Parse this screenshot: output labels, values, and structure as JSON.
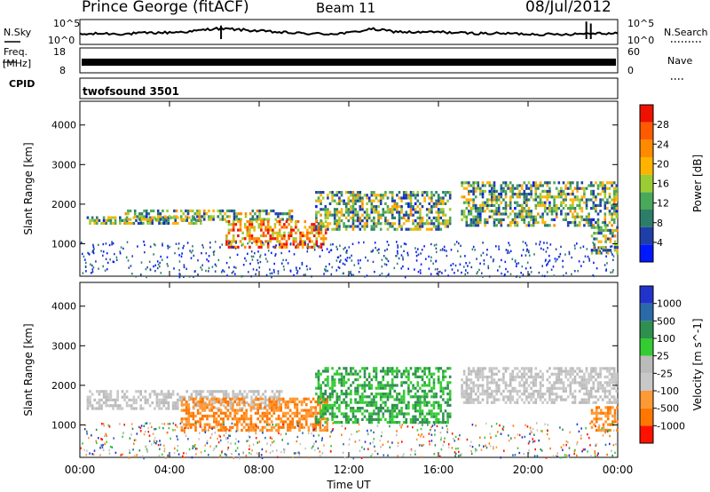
{
  "header": {
    "title": "Prince George (fitACF)",
    "beam": "Beam 11",
    "date": "08/Jul/2012"
  },
  "left_labels": {
    "nsky": "N.Sky",
    "freq": "Freq.",
    "mhz": "[MHz]",
    "cpid": "CPID"
  },
  "right_labels": {
    "nsearch": "N.Search",
    "nave": "Nave"
  },
  "cpid_value": "twofsound 3501",
  "colors": {
    "power": [
      "#0018ff",
      "#1f3fa8",
      "#2d7d6a",
      "#4aa85a",
      "#9ccc33",
      "#ffb300",
      "#ff8a00",
      "#ff5a00",
      "#ee1100"
    ],
    "velocity": [
      "#ff1100",
      "#ff7700",
      "#ff9933",
      "#c8c8c8",
      "#bbbbbb",
      "#33cc33",
      "#2f8f4f",
      "#2a6aa8",
      "#2233cc"
    ]
  },
  "chart_data": [
    {
      "type": "line",
      "name": "noise",
      "left_ticks": [
        "10^5",
        "10^0"
      ],
      "right_ticks": [
        "10^5",
        "10^0"
      ],
      "x": [
        0,
        1,
        2,
        3,
        4,
        5,
        6,
        7,
        8,
        9,
        10,
        11,
        12,
        13,
        14,
        15,
        16,
        17,
        18,
        19,
        20,
        21,
        22,
        23,
        24
      ],
      "series": [
        {
          "values": [
            2.0,
            2.2,
            2.1,
            2.3,
            2.4,
            2.6,
            3.2,
            3.0,
            2.7,
            2.4,
            2.2,
            2.1,
            2.3,
            3.1,
            2.6,
            2.4,
            2.5,
            2.3,
            2.2,
            2.2,
            2.1,
            2.0,
            2.1,
            2.3,
            2.2
          ]
        }
      ]
    },
    {
      "type": "line",
      "name": "frequency",
      "left_ticks": [
        "18",
        "8"
      ],
      "right_ticks": [
        "60",
        "0"
      ],
      "x": [
        0,
        24
      ],
      "series": [
        {
          "values": [
            11,
            11
          ]
        }
      ]
    },
    {
      "type": "heatmap",
      "name": "power",
      "ylabel": "Slant Range [km]",
      "yticks": [
        "4000",
        "3000",
        "2000",
        "1000"
      ],
      "yrange": [
        180,
        4600
      ],
      "colorbar_label": "Power [dB]",
      "colorbar_ticks": [
        "28",
        "24",
        "20",
        "16",
        "12",
        "8",
        "4"
      ],
      "bands": [
        {
          "t0": 0.3,
          "t1": 5.5,
          "r0": 1550,
          "r1": 1750
        },
        {
          "t0": 2.0,
          "t1": 9.5,
          "r0": 1650,
          "r1": 1900
        },
        {
          "t0": 6.5,
          "t1": 11.0,
          "r0": 950,
          "r1": 1600
        },
        {
          "t0": 10.5,
          "t1": 16.5,
          "r0": 1400,
          "r1": 2400
        },
        {
          "t0": 17.0,
          "t1": 24.0,
          "r0": 1500,
          "r1": 2600
        },
        {
          "t0": 22.8,
          "t1": 24.0,
          "r0": 800,
          "r1": 1500
        }
      ]
    },
    {
      "type": "heatmap",
      "name": "velocity",
      "xlabel": "Time UT",
      "xticks": [
        "00:00",
        "04:00",
        "08:00",
        "12:00",
        "16:00",
        "20:00",
        "00:00"
      ],
      "ylabel": "Slant Range [km]",
      "yticks": [
        "4000",
        "3000",
        "2000",
        "1000"
      ],
      "yrange": [
        180,
        4600
      ],
      "colorbar_label": "Velocity [m s^-1]",
      "colorbar_ticks": [
        "1000",
        "500",
        "100",
        "25",
        "-25",
        "-100",
        "-500",
        "-1000"
      ],
      "bands": [
        {
          "t0": 0.3,
          "t1": 9.0,
          "r0": 1450,
          "r1": 1900
        },
        {
          "t0": 4.5,
          "t1": 11.0,
          "r0": 900,
          "r1": 1700
        },
        {
          "t0": 10.5,
          "t1": 16.5,
          "r0": 1100,
          "r1": 2500
        },
        {
          "t0": 17.0,
          "t1": 24.0,
          "r0": 1600,
          "r1": 2500
        },
        {
          "t0": 22.8,
          "t1": 24.0,
          "r0": 900,
          "r1": 1500
        }
      ]
    }
  ]
}
